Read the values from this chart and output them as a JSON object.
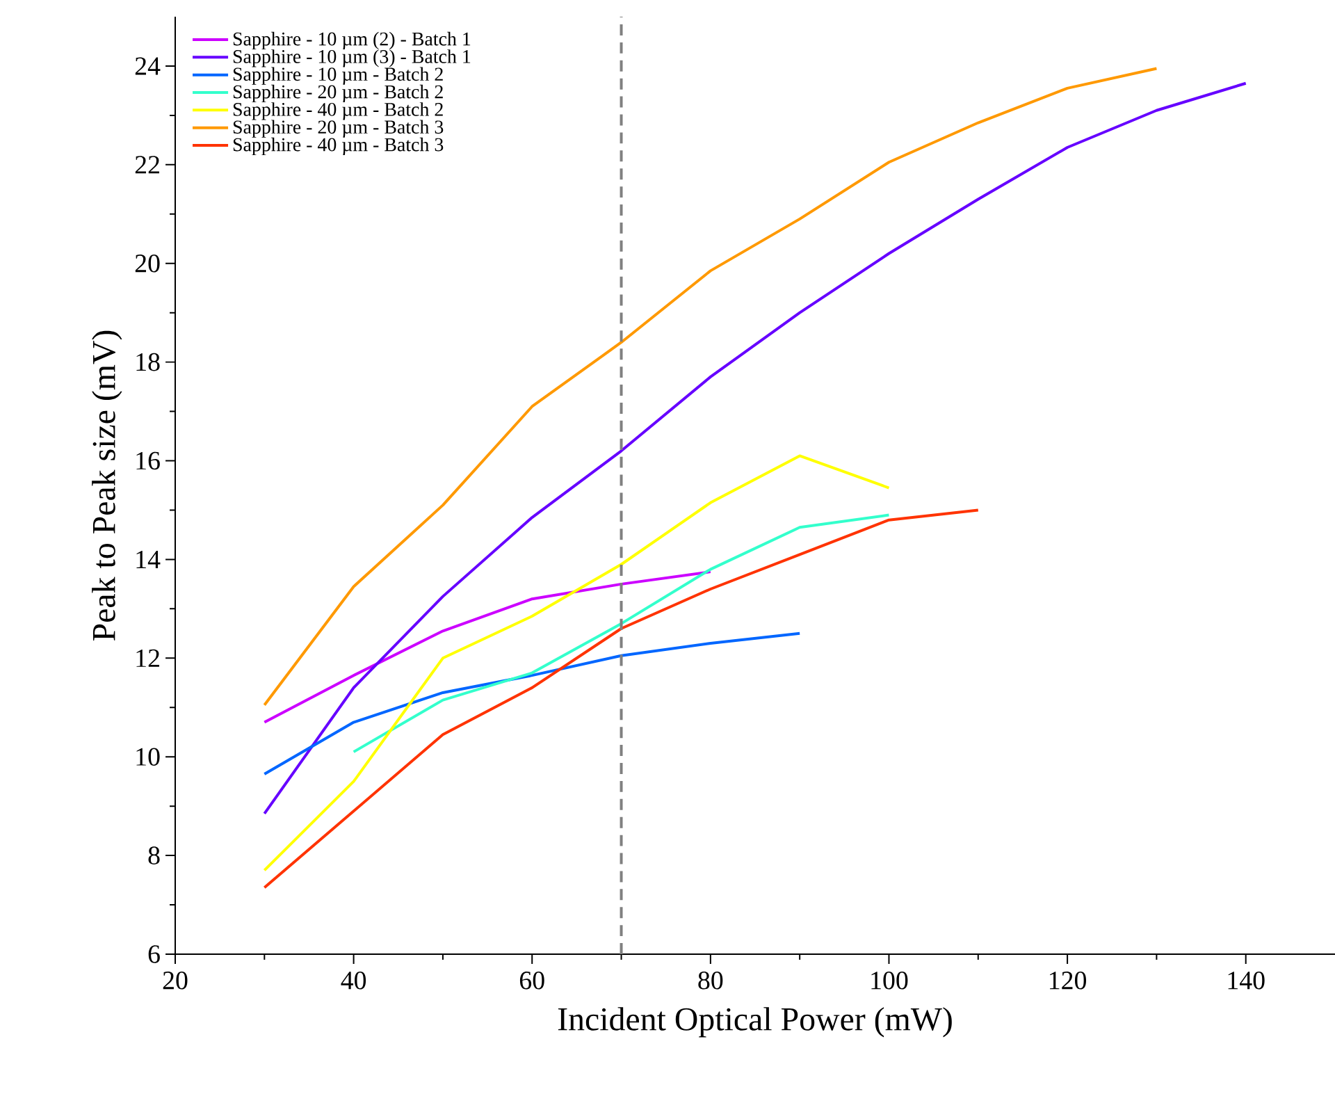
{
  "chart_data": {
    "type": "line",
    "xlabel": "Incident Optical Power (mW)",
    "ylabel": "Peak to Peak size (mV)",
    "xlim": [
      20,
      150
    ],
    "ylim": [
      6,
      25
    ],
    "xticks": [
      20,
      40,
      60,
      80,
      100,
      120,
      140
    ],
    "yticks": [
      6,
      8,
      10,
      12,
      14,
      16,
      18,
      20,
      22,
      24
    ],
    "grid": false,
    "legend": "top left",
    "marker": "none",
    "line_style": "solid",
    "series": [
      {
        "name": "Sapphire - 10 µm (2) - Batch 1",
        "color": "#cc00ff",
        "x": [
          30,
          40,
          50,
          60,
          70,
          80
        ],
        "values": [
          10.7,
          11.65,
          12.55,
          13.2,
          13.5,
          13.75
        ]
      },
      {
        "name": "Sapphire - 10 µm (3) - Batch 1",
        "color": "#6600ff",
        "x": [
          30,
          40,
          50,
          60,
          70,
          80,
          90,
          100,
          110,
          120,
          130,
          140
        ],
        "values": [
          8.85,
          11.4,
          13.25,
          14.85,
          16.2,
          17.7,
          19.0,
          20.2,
          21.3,
          22.35,
          23.1,
          23.65
        ]
      },
      {
        "name": "Sapphire - 10 µm - Batch 2",
        "color": "#0066ff",
        "x": [
          30,
          40,
          50,
          60,
          70,
          80,
          90
        ],
        "values": [
          9.65,
          10.7,
          11.3,
          11.65,
          12.05,
          12.3,
          12.5
        ]
      },
      {
        "name": "Sapphire - 20 µm - Batch 2",
        "color": "#33ffcc",
        "x": [
          40,
          50,
          60,
          70,
          80,
          90,
          100
        ],
        "values": [
          10.1,
          11.15,
          11.7,
          12.7,
          13.8,
          14.65,
          14.9
        ]
      },
      {
        "name": "Sapphire - 40 µm - Batch 2",
        "color": "#ffff00",
        "x": [
          30,
          40,
          50,
          60,
          70,
          80,
          90,
          100
        ],
        "values": [
          7.7,
          9.5,
          12.0,
          12.85,
          13.9,
          15.15,
          16.1,
          15.45
        ]
      },
      {
        "name": "Sapphire - 20 µm - Batch 3",
        "color": "#ff9900",
        "x": [
          30,
          40,
          50,
          60,
          70,
          80,
          90,
          100,
          110,
          120,
          130
        ],
        "values": [
          11.05,
          13.45,
          15.1,
          17.1,
          18.4,
          19.85,
          20.9,
          22.05,
          22.85,
          23.55,
          23.95
        ]
      },
      {
        "name": "Sapphire - 40 µm - Batch 3",
        "color": "#ff3300",
        "x": [
          30,
          40,
          50,
          60,
          70,
          80,
          90,
          100,
          110
        ],
        "values": [
          7.35,
          8.9,
          10.45,
          11.4,
          12.6,
          13.4,
          14.1,
          14.8,
          15.0
        ]
      }
    ],
    "ref_lines": [
      {
        "axis": "x",
        "value": 70,
        "color": "#808080",
        "line_style": "dashed"
      }
    ]
  }
}
